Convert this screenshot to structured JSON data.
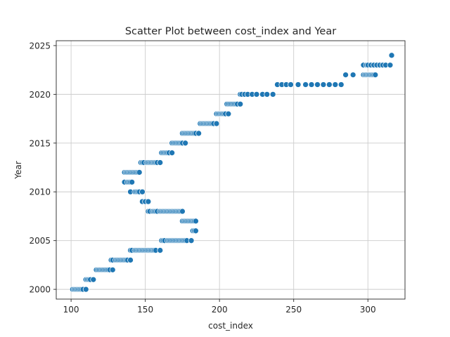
{
  "chart_data": {
    "type": "scatter",
    "title": "Scatter Plot between cost_index and Year",
    "xlabel": "cost_index",
    "ylabel": "Year",
    "xlim": [
      90,
      325
    ],
    "ylim": [
      1999,
      2025.5
    ],
    "xticks": [
      100,
      150,
      200,
      250,
      300
    ],
    "yticks": [
      2000,
      2005,
      2010,
      2015,
      2020,
      2025
    ],
    "grid": true,
    "color": "#1f77b4",
    "series": [
      {
        "points": [
          [
            101,
            2000
          ],
          [
            102,
            2000
          ],
          [
            103,
            2000
          ],
          [
            104,
            2000
          ],
          [
            105,
            2000
          ],
          [
            106,
            2000
          ],
          [
            107,
            2000
          ],
          [
            108,
            2000
          ],
          [
            110,
            2000
          ],
          [
            110,
            2001
          ],
          [
            111,
            2001
          ],
          [
            112,
            2001
          ],
          [
            113,
            2001
          ],
          [
            115,
            2001
          ],
          [
            117,
            2002
          ],
          [
            118,
            2002
          ],
          [
            119,
            2002
          ],
          [
            120,
            2002
          ],
          [
            121,
            2002
          ],
          [
            122,
            2002
          ],
          [
            123,
            2002
          ],
          [
            124,
            2002
          ],
          [
            125,
            2002
          ],
          [
            126,
            2002
          ],
          [
            128,
            2002
          ],
          [
            127,
            2003
          ],
          [
            128,
            2003
          ],
          [
            130,
            2003
          ],
          [
            131,
            2003
          ],
          [
            132,
            2003
          ],
          [
            133,
            2003
          ],
          [
            134,
            2003
          ],
          [
            135,
            2003
          ],
          [
            136,
            2003
          ],
          [
            137,
            2003
          ],
          [
            138,
            2003
          ],
          [
            140,
            2003
          ],
          [
            140,
            2004
          ],
          [
            141,
            2004
          ],
          [
            143,
            2004
          ],
          [
            144,
            2004
          ],
          [
            145,
            2004
          ],
          [
            146,
            2004
          ],
          [
            147,
            2004
          ],
          [
            148,
            2004
          ],
          [
            149,
            2004
          ],
          [
            150,
            2004
          ],
          [
            151,
            2004
          ],
          [
            152,
            2004
          ],
          [
            153,
            2004
          ],
          [
            154,
            2004
          ],
          [
            155,
            2004
          ],
          [
            156,
            2004
          ],
          [
            157,
            2004
          ],
          [
            160,
            2004
          ],
          [
            161,
            2005
          ],
          [
            162,
            2005
          ],
          [
            163,
            2005
          ],
          [
            165,
            2005
          ],
          [
            166,
            2005
          ],
          [
            167,
            2005
          ],
          [
            168,
            2005
          ],
          [
            169,
            2005
          ],
          [
            170,
            2005
          ],
          [
            171,
            2005
          ],
          [
            172,
            2005
          ],
          [
            173,
            2005
          ],
          [
            174,
            2005
          ],
          [
            175,
            2005
          ],
          [
            176,
            2005
          ],
          [
            177,
            2005
          ],
          [
            178,
            2005
          ],
          [
            181,
            2005
          ],
          [
            182,
            2006
          ],
          [
            183,
            2006
          ],
          [
            184,
            2006
          ],
          [
            175,
            2007
          ],
          [
            176,
            2007
          ],
          [
            177,
            2007
          ],
          [
            178,
            2007
          ],
          [
            179,
            2007
          ],
          [
            180,
            2007
          ],
          [
            181,
            2007
          ],
          [
            182,
            2007
          ],
          [
            183,
            2007
          ],
          [
            184,
            2007
          ],
          [
            152,
            2008
          ],
          [
            153,
            2008
          ],
          [
            155,
            2008
          ],
          [
            156,
            2008
          ],
          [
            157,
            2008
          ],
          [
            158,
            2008
          ],
          [
            160,
            2008
          ],
          [
            161,
            2008
          ],
          [
            162,
            2008
          ],
          [
            163,
            2008
          ],
          [
            164,
            2008
          ],
          [
            165,
            2008
          ],
          [
            166,
            2008
          ],
          [
            167,
            2008
          ],
          [
            168,
            2008
          ],
          [
            169,
            2008
          ],
          [
            170,
            2008
          ],
          [
            171,
            2008
          ],
          [
            172,
            2008
          ],
          [
            173,
            2008
          ],
          [
            174,
            2008
          ],
          [
            175,
            2008
          ],
          [
            148,
            2009
          ],
          [
            150,
            2009
          ],
          [
            152,
            2009
          ],
          [
            140,
            2010
          ],
          [
            143,
            2010
          ],
          [
            144,
            2010
          ],
          [
            145,
            2010
          ],
          [
            146,
            2010
          ],
          [
            148,
            2010
          ],
          [
            136,
            2011
          ],
          [
            138,
            2011
          ],
          [
            139,
            2011
          ],
          [
            140,
            2011
          ],
          [
            141,
            2011
          ],
          [
            136,
            2012
          ],
          [
            137,
            2012
          ],
          [
            138,
            2012
          ],
          [
            139,
            2012
          ],
          [
            140,
            2012
          ],
          [
            141,
            2012
          ],
          [
            142,
            2012
          ],
          [
            143,
            2012
          ],
          [
            144,
            2012
          ],
          [
            145,
            2012
          ],
          [
            146,
            2012
          ],
          [
            147,
            2013
          ],
          [
            148,
            2013
          ],
          [
            149,
            2013
          ],
          [
            151,
            2013
          ],
          [
            152,
            2013
          ],
          [
            153,
            2013
          ],
          [
            154,
            2013
          ],
          [
            155,
            2013
          ],
          [
            156,
            2013
          ],
          [
            157,
            2013
          ],
          [
            158,
            2013
          ],
          [
            160,
            2013
          ],
          [
            161,
            2014
          ],
          [
            162,
            2014
          ],
          [
            163,
            2014
          ],
          [
            164,
            2014
          ],
          [
            165,
            2014
          ],
          [
            166,
            2014
          ],
          [
            168,
            2014
          ],
          [
            168,
            2015
          ],
          [
            169,
            2015
          ],
          [
            170,
            2015
          ],
          [
            171,
            2015
          ],
          [
            172,
            2015
          ],
          [
            173,
            2015
          ],
          [
            174,
            2015
          ],
          [
            175,
            2015
          ],
          [
            177,
            2015
          ],
          [
            175,
            2016
          ],
          [
            176,
            2016
          ],
          [
            177,
            2016
          ],
          [
            178,
            2016
          ],
          [
            179,
            2016
          ],
          [
            180,
            2016
          ],
          [
            181,
            2016
          ],
          [
            182,
            2016
          ],
          [
            183,
            2016
          ],
          [
            184,
            2016
          ],
          [
            186,
            2016
          ],
          [
            187,
            2017
          ],
          [
            188,
            2017
          ],
          [
            189,
            2017
          ],
          [
            190,
            2017
          ],
          [
            191,
            2017
          ],
          [
            192,
            2017
          ],
          [
            193,
            2017
          ],
          [
            194,
            2017
          ],
          [
            195,
            2017
          ],
          [
            196,
            2017
          ],
          [
            198,
            2017
          ],
          [
            198,
            2018
          ],
          [
            199,
            2018
          ],
          [
            200,
            2018
          ],
          [
            201,
            2018
          ],
          [
            202,
            2018
          ],
          [
            203,
            2018
          ],
          [
            204,
            2018
          ],
          [
            206,
            2018
          ],
          [
            205,
            2019
          ],
          [
            206,
            2019
          ],
          [
            207,
            2019
          ],
          [
            208,
            2019
          ],
          [
            209,
            2019
          ],
          [
            210,
            2019
          ],
          [
            211,
            2019
          ],
          [
            212,
            2019
          ],
          [
            214,
            2019
          ],
          [
            214,
            2020
          ],
          [
            215,
            2020
          ],
          [
            217,
            2020
          ],
          [
            219,
            2020
          ],
          [
            222,
            2020
          ],
          [
            225,
            2020
          ],
          [
            229,
            2020
          ],
          [
            232,
            2020
          ],
          [
            236,
            2020
          ],
          [
            239,
            2021
          ],
          [
            242,
            2021
          ],
          [
            245,
            2021
          ],
          [
            248,
            2021
          ],
          [
            253,
            2021
          ],
          [
            258,
            2021
          ],
          [
            262,
            2021
          ],
          [
            266,
            2021
          ],
          [
            270,
            2021
          ],
          [
            274,
            2021
          ],
          [
            278,
            2021
          ],
          [
            282,
            2021
          ],
          [
            285,
            2022
          ],
          [
            290,
            2022
          ],
          [
            297,
            2022
          ],
          [
            298,
            2022
          ],
          [
            299,
            2022
          ],
          [
            300,
            2022
          ],
          [
            301,
            2022
          ],
          [
            302,
            2022
          ],
          [
            303,
            2022
          ],
          [
            304,
            2022
          ],
          [
            305,
            2022
          ],
          [
            297,
            2023
          ],
          [
            299,
            2023
          ],
          [
            300,
            2023
          ],
          [
            302,
            2023
          ],
          [
            304,
            2023
          ],
          [
            306,
            2023
          ],
          [
            308,
            2023
          ],
          [
            310,
            2023
          ],
          [
            312,
            2023
          ],
          [
            315,
            2023
          ],
          [
            316,
            2024
          ]
        ]
      }
    ]
  }
}
